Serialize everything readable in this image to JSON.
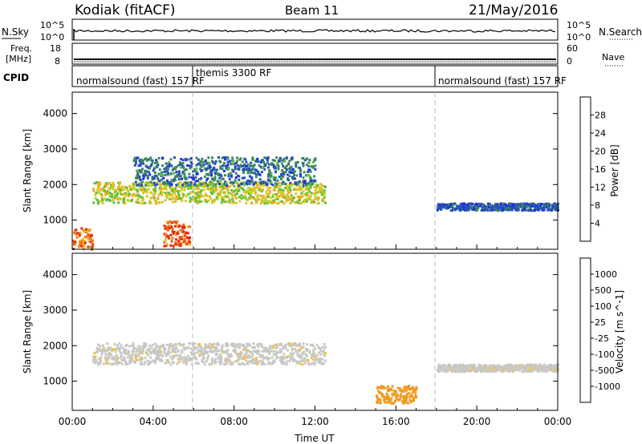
{
  "header": {
    "station": "Kodiak (fitACF)",
    "beam": "Beam 11",
    "date": "21/May/2016"
  },
  "top_strip": {
    "left_label": "N.Sky",
    "right_label": "N.Search",
    "left_ticks": [
      "10^5",
      "10^0"
    ],
    "right_ticks": [
      "10^5",
      "10^0"
    ]
  },
  "freq_strip": {
    "left_label_1": "Freq.",
    "left_label_2": "[MHz]",
    "left_ticks": [
      "18",
      "8"
    ],
    "right_label": "Nave",
    "right_ticks": [
      "60",
      "0"
    ]
  },
  "cpid_strip": {
    "label": "CPID",
    "segments": [
      {
        "text": "normalsound (fast) 157 RF",
        "start_hour": 0
      },
      {
        "text": "themis 3300 RF",
        "start_hour": 6
      },
      {
        "text": "normalsound (fast) 157 RF",
        "start_hour": 18
      }
    ]
  },
  "colors": {
    "power": [
      "#1f2fe0",
      "#2850b8",
      "#3a8a5a",
      "#5cbf3a",
      "#c8d02a",
      "#f0b020",
      "#f07018",
      "#e02a10"
    ],
    "velocity": [
      "#e01010",
      "#f06010",
      "#f09a20",
      "#f0c040",
      "#c8c8c8",
      "#c8c8c8",
      "#60c030",
      "#2f8a50",
      "#2060b0",
      "#1020c0"
    ],
    "velocity_ground": "#c8c8c4"
  },
  "chart_data": [
    {
      "type": "heatmap",
      "name": "Power",
      "xlabel": "",
      "ylabel": "Slant Range [km]",
      "xlim": [
        0,
        24
      ],
      "ylim": [
        180,
        4600
      ],
      "yticks": [
        1000,
        2000,
        3000,
        4000
      ],
      "colorbar": {
        "label": "Power [dB]",
        "ticks": [
          4,
          8,
          12,
          16,
          20,
          24,
          28
        ],
        "range": [
          0,
          32
        ]
      },
      "echo_regions": [
        {
          "desc": "ionospheric band",
          "hour_start": 1.0,
          "hour_end": 12.5,
          "range_start_km": 1500,
          "range_end_km": 2100,
          "power_db": 18
        },
        {
          "desc": "upper band",
          "hour_start": 3.0,
          "hour_end": 12.0,
          "range_start_km": 2000,
          "range_end_km": 2800,
          "power_db": 8
        },
        {
          "desc": "near range",
          "hour_start": 0.0,
          "hour_end": 1.0,
          "range_start_km": 200,
          "range_end_km": 800,
          "power_db": 26
        },
        {
          "desc": "near range",
          "hour_start": 4.5,
          "hour_end": 5.8,
          "range_start_km": 300,
          "range_end_km": 1000,
          "power_db": 28
        },
        {
          "desc": "late band",
          "hour_start": 18.0,
          "hour_end": 24.0,
          "range_start_km": 1300,
          "range_end_km": 1500,
          "power_db": 6
        }
      ]
    },
    {
      "type": "heatmap",
      "name": "Velocity",
      "xlabel": "Time UT",
      "ylabel": "Slant Range [km]",
      "xlim": [
        0,
        24
      ],
      "ylim": [
        180,
        4600
      ],
      "yticks": [
        1000,
        2000,
        3000,
        4000
      ],
      "xticks": [
        "00:00",
        "04:00",
        "08:00",
        "12:00",
        "16:00",
        "20:00",
        "00:00"
      ],
      "colorbar": {
        "label": "Velocity [m s^-1]",
        "ticks": [
          -1000,
          -500,
          -100,
          -25,
          25,
          100,
          500,
          1000
        ]
      },
      "echo_regions": [
        {
          "desc": "ground scatter band",
          "hour_start": 1.0,
          "hour_end": 12.5,
          "range_start_km": 1500,
          "range_end_km": 2100,
          "velocity": 0
        },
        {
          "desc": "near range flow",
          "hour_start": 15.0,
          "hour_end": 17.0,
          "range_start_km": 400,
          "range_end_km": 900,
          "velocity": -300
        },
        {
          "desc": "late band",
          "hour_start": 18.0,
          "hour_end": 24.0,
          "range_start_km": 1300,
          "range_end_km": 1500,
          "velocity": 0
        }
      ]
    }
  ]
}
